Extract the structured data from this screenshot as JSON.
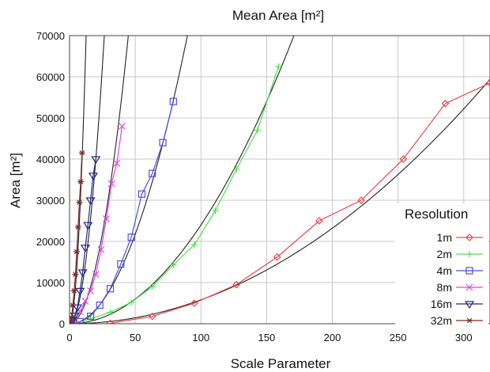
{
  "chart_data": {
    "type": "line",
    "title": "Mean Area [m²]",
    "xlabel": "Scale Parameter",
    "ylabel": "Area [m²]",
    "xlim": [
      0,
      320
    ],
    "ylim": [
      0,
      70000
    ],
    "x_ticks": [
      "0",
      "50",
      "100",
      "150",
      "200",
      "250",
      "300"
    ],
    "y_ticks": [
      "0",
      "10000",
      "20000",
      "30000",
      "40000",
      "50000",
      "60000",
      "70000"
    ],
    "grid": true,
    "legend": {
      "title": "Resolution",
      "position": "right"
    },
    "series": [
      {
        "name": "1m",
        "color": "#e8474a",
        "marker": "diamond",
        "points": [
          [
            31,
            100
          ],
          [
            63,
            1800
          ],
          [
            95,
            5000
          ],
          [
            127,
            9500
          ],
          [
            158,
            16200
          ],
          [
            190,
            25000
          ],
          [
            222,
            30000
          ],
          [
            254,
            40000
          ],
          [
            286,
            53500
          ],
          [
            320,
            58500
          ]
        ],
        "fit": {
          "coef": 0.58,
          "exp": 2.0
        }
      },
      {
        "name": "2m",
        "color": "#4ee14e",
        "marker": "plus",
        "points": [
          [
            2,
            0
          ],
          [
            16,
            1200
          ],
          [
            31,
            2800
          ],
          [
            47,
            5200
          ],
          [
            63,
            9000
          ],
          [
            79,
            14300
          ],
          [
            95,
            19200
          ],
          [
            111,
            27500
          ],
          [
            127,
            37500
          ],
          [
            143,
            47000
          ],
          [
            159,
            62500
          ]
        ],
        "fit": {
          "coef": 2.4,
          "exp": 2.0
        }
      },
      {
        "name": "4m",
        "color": "#4f4fe0",
        "marker": "square",
        "points": [
          [
            1,
            0
          ],
          [
            8,
            500
          ],
          [
            16,
            1800
          ],
          [
            23,
            4500
          ],
          [
            31,
            8500
          ],
          [
            39,
            14500
          ],
          [
            47,
            21000
          ],
          [
            55,
            31500
          ],
          [
            63,
            36500
          ],
          [
            71,
            44000
          ],
          [
            79,
            54000
          ]
        ],
        "fit": {
          "coef": 8.7,
          "exp": 2.0
        }
      },
      {
        "name": "8m",
        "color": "#e046e0",
        "marker": "x",
        "points": [
          [
            0.5,
            0
          ],
          [
            4,
            800
          ],
          [
            8,
            3000
          ],
          [
            12,
            5500
          ],
          [
            16,
            8000
          ],
          [
            20,
            12000
          ],
          [
            24,
            18000
          ],
          [
            28,
            25500
          ],
          [
            32,
            34000
          ],
          [
            36,
            39000
          ],
          [
            40,
            48000
          ]
        ],
        "fit": {
          "coef": 35,
          "exp": 2.0
        }
      },
      {
        "name": "16m",
        "color": "#26268a",
        "marker": "triangle-down",
        "points": [
          [
            0.5,
            0
          ],
          [
            2,
            800
          ],
          [
            4,
            2000
          ],
          [
            6,
            4000
          ],
          [
            8,
            8000
          ],
          [
            10,
            12500
          ],
          [
            12,
            18500
          ],
          [
            14,
            24000
          ],
          [
            16,
            30000
          ],
          [
            18,
            36000
          ],
          [
            20,
            40000
          ]
        ],
        "fit": {
          "coef": 100,
          "exp": 2.0
        }
      },
      {
        "name": "32m",
        "color": "#7a2a2a",
        "marker": "asterisk",
        "points": [
          [
            0.5,
            200
          ],
          [
            1.5,
            1500
          ],
          [
            2.5,
            4500
          ],
          [
            3.5,
            8000
          ],
          [
            4.5,
            12000
          ],
          [
            5.5,
            17500
          ],
          [
            6.5,
            23500
          ],
          [
            7.5,
            29500
          ],
          [
            8.5,
            34500
          ],
          [
            9.5,
            41500
          ]
        ],
        "fit": {
          "coef": 440,
          "exp": 2.0
        }
      }
    ],
    "fit_color": "#222222"
  }
}
